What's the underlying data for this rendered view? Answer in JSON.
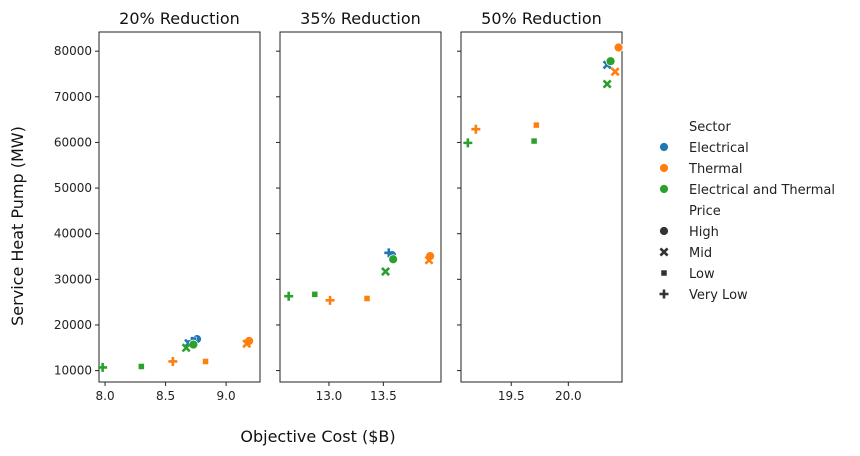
{
  "chart_data": {
    "type": "scatter",
    "xlabel": "Objective Cost ($B)",
    "ylabel": "Service Heat Pump (MW)",
    "ylim": [
      7500,
      84200
    ],
    "yticks": [
      10000,
      20000,
      30000,
      40000,
      50000,
      60000,
      70000,
      80000
    ],
    "grid": false,
    "legend_placement": "right",
    "colors": {
      "Electrical": "#1f77b4",
      "Thermal": "#ff7f0e",
      "Electrical and Thermal": "#2ca02c"
    },
    "legend": {
      "hue_title": "Sector",
      "hue_entries": [
        "Electrical",
        "Thermal",
        "Electrical and Thermal"
      ],
      "style_title": "Price",
      "style_entries": [
        {
          "label": "High",
          "marker": "circle"
        },
        {
          "label": "Mid",
          "marker": "x"
        },
        {
          "label": "Low",
          "marker": "square"
        },
        {
          "label": "Very Low",
          "marker": "plus"
        }
      ]
    },
    "panels": [
      {
        "title": "20% Reduction",
        "xlim": [
          7.95,
          9.28
        ],
        "xticks": [
          8.0,
          8.5,
          9.0
        ],
        "xtick_labels": [
          "8.0",
          "8.5",
          "9.0"
        ],
        "points": [
          {
            "sector": "Electrical",
            "price": "High",
            "x": 8.76,
            "y": 16900
          },
          {
            "sector": "Electrical",
            "price": "Mid",
            "x": 8.69,
            "y": 16000
          },
          {
            "sector": "Electrical",
            "price": "Low",
            "x": 8.73,
            "y": 16700
          },
          {
            "sector": "Electrical",
            "price": "Very Low",
            "x": 8.72,
            "y": 16400
          },
          {
            "sector": "Thermal",
            "price": "High",
            "x": 9.19,
            "y": 16500
          },
          {
            "sector": "Thermal",
            "price": "Mid",
            "x": 9.17,
            "y": 15900
          },
          {
            "sector": "Thermal",
            "price": "Low",
            "x": 8.83,
            "y": 12000
          },
          {
            "sector": "Thermal",
            "price": "Very Low",
            "x": 8.56,
            "y": 12000
          },
          {
            "sector": "Electrical and Thermal",
            "price": "High",
            "x": 8.73,
            "y": 15700
          },
          {
            "sector": "Electrical and Thermal",
            "price": "Mid",
            "x": 8.67,
            "y": 15000
          },
          {
            "sector": "Electrical and Thermal",
            "price": "Low",
            "x": 8.3,
            "y": 10900
          },
          {
            "sector": "Electrical and Thermal",
            "price": "Very Low",
            "x": 7.98,
            "y": 10700
          }
        ]
      },
      {
        "title": "35% Reduction",
        "xlim": [
          12.55,
          14.03
        ],
        "xticks": [
          13.0,
          13.5
        ],
        "xtick_labels": [
          "13.0",
          "13.5"
        ],
        "points": [
          {
            "sector": "Electrical",
            "price": "High",
            "x": 13.58,
            "y": 35300
          },
          {
            "sector": "Electrical",
            "price": "Very Low",
            "x": 13.55,
            "y": 35800
          },
          {
            "sector": "Thermal",
            "price": "High",
            "x": 13.93,
            "y": 35100
          },
          {
            "sector": "Thermal",
            "price": "Mid",
            "x": 13.92,
            "y": 34200
          },
          {
            "sector": "Thermal",
            "price": "Low",
            "x": 13.35,
            "y": 25800
          },
          {
            "sector": "Thermal",
            "price": "Very Low",
            "x": 13.01,
            "y": 25400
          },
          {
            "sector": "Electrical and Thermal",
            "price": "High",
            "x": 13.59,
            "y": 34400
          },
          {
            "sector": "Electrical and Thermal",
            "price": "Mid",
            "x": 13.52,
            "y": 31700
          },
          {
            "sector": "Electrical and Thermal",
            "price": "Low",
            "x": 12.87,
            "y": 26700
          },
          {
            "sector": "Electrical and Thermal",
            "price": "Very Low",
            "x": 12.63,
            "y": 26300
          }
        ]
      },
      {
        "title": "50% Reduction",
        "xlim": [
          19.06,
          20.47
        ],
        "xticks": [
          19.5,
          20.0
        ],
        "xtick_labels": [
          "19.5",
          "20.0"
        ],
        "points": [
          {
            "sector": "Electrical",
            "price": "Mid",
            "x": 20.34,
            "y": 77000
          },
          {
            "sector": "Thermal",
            "price": "High",
            "x": 20.44,
            "y": 80800
          },
          {
            "sector": "Thermal",
            "price": "Mid",
            "x": 20.41,
            "y": 75500
          },
          {
            "sector": "Thermal",
            "price": "Low",
            "x": 19.72,
            "y": 63800
          },
          {
            "sector": "Thermal",
            "price": "Very Low",
            "x": 19.19,
            "y": 62900
          },
          {
            "sector": "Electrical and Thermal",
            "price": "High",
            "x": 20.37,
            "y": 77800
          },
          {
            "sector": "Electrical and Thermal",
            "price": "Mid",
            "x": 20.34,
            "y": 72800
          },
          {
            "sector": "Electrical and Thermal",
            "price": "Low",
            "x": 19.7,
            "y": 60300
          },
          {
            "sector": "Electrical and Thermal",
            "price": "Very Low",
            "x": 19.12,
            "y": 59900
          }
        ]
      }
    ]
  }
}
